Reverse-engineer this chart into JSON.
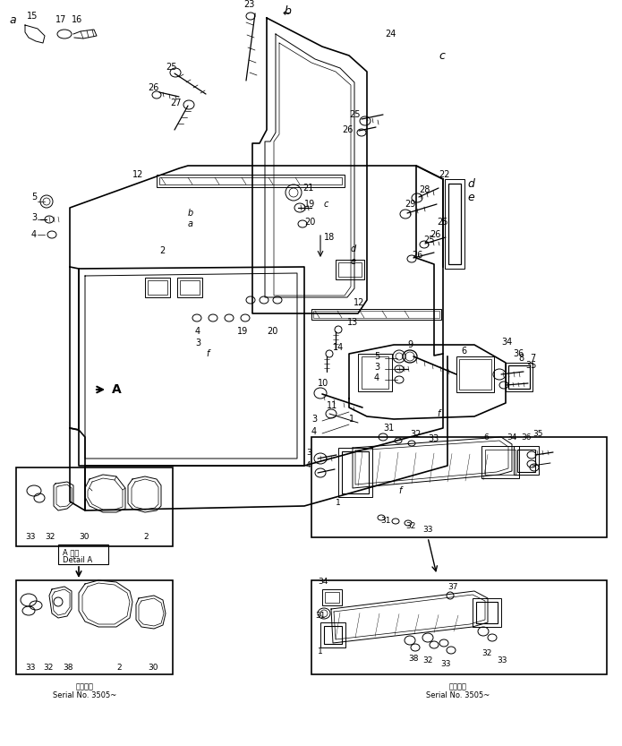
{
  "bg_color": "#ffffff",
  "line_color": "#000000",
  "fig_width": 6.95,
  "fig_height": 8.33,
  "dpi": 100,
  "serial_text_left": "通用号標\nSerial No. 3505~",
  "serial_text_right": "通用号標\nSerial No. 3505~",
  "detail_a_label": "A 詳図\nDetail A"
}
